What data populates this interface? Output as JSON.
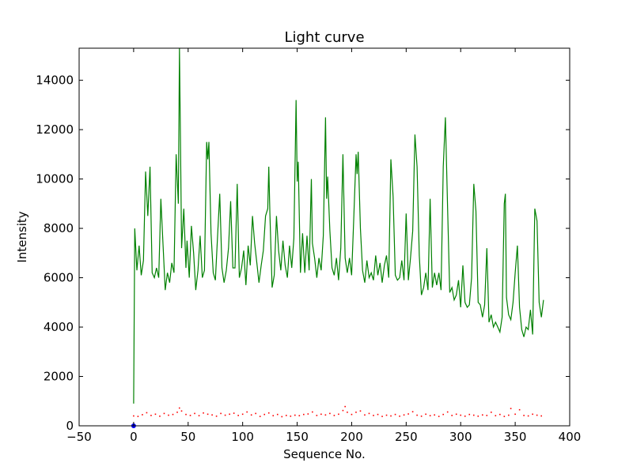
{
  "chart_data": {
    "type": "line",
    "title": "Light curve",
    "xlabel": "Sequence No.",
    "ylabel": "Intensity",
    "xlim": [
      -50,
      400
    ],
    "ylim": [
      0,
      15300
    ],
    "xticks": [
      -50,
      0,
      50,
      100,
      150,
      200,
      250,
      300,
      350,
      400
    ],
    "yticks": [
      0,
      2000,
      4000,
      6000,
      8000,
      10000,
      12000,
      14000
    ],
    "grid": false,
    "legend": "none",
    "series": [
      {
        "style": "solid-line",
        "color": "#008000",
        "points": [
          [
            0,
            900
          ],
          [
            1,
            8000
          ],
          [
            3,
            6300
          ],
          [
            5,
            7300
          ],
          [
            7,
            6100
          ],
          [
            9,
            6700
          ],
          [
            11,
            10300
          ],
          [
            13,
            8500
          ],
          [
            15,
            10500
          ],
          [
            17,
            6200
          ],
          [
            19,
            6000
          ],
          [
            21,
            6400
          ],
          [
            23,
            6000
          ],
          [
            25,
            9200
          ],
          [
            27,
            7300
          ],
          [
            29,
            5500
          ],
          [
            31,
            6200
          ],
          [
            33,
            5800
          ],
          [
            35,
            6600
          ],
          [
            37,
            6200
          ],
          [
            39,
            11000
          ],
          [
            41,
            9000
          ],
          [
            42,
            15300
          ],
          [
            43,
            11500
          ],
          [
            44,
            7200
          ],
          [
            46,
            8800
          ],
          [
            48,
            6400
          ],
          [
            49,
            7500
          ],
          [
            51,
            6000
          ],
          [
            53,
            8100
          ],
          [
            55,
            7000
          ],
          [
            57,
            5500
          ],
          [
            59,
            6300
          ],
          [
            61,
            7700
          ],
          [
            63,
            6000
          ],
          [
            65,
            6300
          ],
          [
            67,
            11500
          ],
          [
            68,
            10800
          ],
          [
            69,
            11500
          ],
          [
            71,
            7800
          ],
          [
            73,
            6200
          ],
          [
            75,
            5900
          ],
          [
            77,
            7700
          ],
          [
            79,
            9400
          ],
          [
            81,
            6400
          ],
          [
            83,
            5800
          ],
          [
            85,
            6300
          ],
          [
            87,
            7200
          ],
          [
            89,
            9100
          ],
          [
            91,
            6400
          ],
          [
            93,
            6400
          ],
          [
            95,
            9800
          ],
          [
            97,
            6000
          ],
          [
            99,
            6400
          ],
          [
            101,
            7100
          ],
          [
            103,
            5700
          ],
          [
            105,
            7300
          ],
          [
            107,
            6500
          ],
          [
            109,
            8500
          ],
          [
            111,
            7400
          ],
          [
            113,
            6600
          ],
          [
            115,
            5800
          ],
          [
            117,
            6500
          ],
          [
            119,
            7100
          ],
          [
            121,
            8500
          ],
          [
            123,
            8800
          ],
          [
            124,
            10500
          ],
          [
            125,
            8600
          ],
          [
            127,
            5600
          ],
          [
            129,
            6100
          ],
          [
            131,
            8500
          ],
          [
            133,
            7100
          ],
          [
            135,
            6300
          ],
          [
            137,
            7500
          ],
          [
            139,
            6500
          ],
          [
            141,
            6000
          ],
          [
            143,
            7300
          ],
          [
            145,
            6400
          ],
          [
            147,
            7600
          ],
          [
            149,
            13200
          ],
          [
            150,
            9900
          ],
          [
            151,
            10700
          ],
          [
            153,
            6200
          ],
          [
            155,
            7800
          ],
          [
            157,
            6200
          ],
          [
            159,
            7700
          ],
          [
            161,
            6300
          ],
          [
            163,
            10000
          ],
          [
            164,
            7400
          ],
          [
            166,
            6800
          ],
          [
            168,
            6000
          ],
          [
            170,
            6800
          ],
          [
            172,
            6300
          ],
          [
            174,
            7700
          ],
          [
            176,
            12500
          ],
          [
            177,
            9200
          ],
          [
            178,
            10100
          ],
          [
            180,
            7900
          ],
          [
            182,
            6400
          ],
          [
            184,
            6100
          ],
          [
            186,
            6800
          ],
          [
            188,
            5900
          ],
          [
            190,
            7200
          ],
          [
            192,
            11000
          ],
          [
            194,
            6800
          ],
          [
            196,
            6200
          ],
          [
            198,
            6800
          ],
          [
            200,
            6100
          ],
          [
            202,
            8500
          ],
          [
            204,
            11000
          ],
          [
            205,
            10200
          ],
          [
            206,
            11100
          ],
          [
            208,
            8000
          ],
          [
            210,
            6300
          ],
          [
            212,
            5800
          ],
          [
            214,
            6700
          ],
          [
            216,
            6000
          ],
          [
            218,
            6200
          ],
          [
            220,
            5900
          ],
          [
            222,
            6900
          ],
          [
            224,
            6100
          ],
          [
            226,
            6600
          ],
          [
            228,
            5800
          ],
          [
            230,
            6500
          ],
          [
            232,
            6900
          ],
          [
            234,
            6000
          ],
          [
            236,
            10800
          ],
          [
            238,
            9300
          ],
          [
            240,
            6100
          ],
          [
            242,
            5900
          ],
          [
            244,
            6000
          ],
          [
            246,
            6700
          ],
          [
            248,
            5900
          ],
          [
            250,
            8600
          ],
          [
            252,
            5900
          ],
          [
            254,
            6800
          ],
          [
            256,
            7900
          ],
          [
            258,
            11800
          ],
          [
            260,
            10500
          ],
          [
            262,
            6900
          ],
          [
            264,
            5300
          ],
          [
            266,
            5600
          ],
          [
            268,
            6200
          ],
          [
            270,
            5500
          ],
          [
            272,
            9200
          ],
          [
            274,
            5600
          ],
          [
            276,
            6200
          ],
          [
            278,
            5700
          ],
          [
            280,
            6200
          ],
          [
            282,
            5500
          ],
          [
            284,
            10500
          ],
          [
            286,
            12500
          ],
          [
            288,
            8800
          ],
          [
            290,
            5400
          ],
          [
            292,
            5600
          ],
          [
            294,
            5100
          ],
          [
            296,
            5300
          ],
          [
            298,
            5900
          ],
          [
            300,
            4800
          ],
          [
            302,
            6500
          ],
          [
            304,
            5000
          ],
          [
            306,
            4800
          ],
          [
            308,
            4900
          ],
          [
            310,
            6000
          ],
          [
            312,
            9800
          ],
          [
            314,
            8700
          ],
          [
            316,
            5000
          ],
          [
            318,
            4900
          ],
          [
            320,
            4400
          ],
          [
            322,
            4900
          ],
          [
            324,
            7200
          ],
          [
            326,
            4200
          ],
          [
            328,
            4500
          ],
          [
            330,
            4000
          ],
          [
            332,
            4200
          ],
          [
            334,
            4000
          ],
          [
            336,
            3800
          ],
          [
            338,
            4400
          ],
          [
            340,
            9000
          ],
          [
            341,
            9400
          ],
          [
            342,
            5200
          ],
          [
            344,
            4500
          ],
          [
            346,
            4300
          ],
          [
            348,
            5000
          ],
          [
            350,
            6200
          ],
          [
            352,
            7300
          ],
          [
            354,
            4800
          ],
          [
            356,
            3900
          ],
          [
            358,
            3600
          ],
          [
            360,
            4000
          ],
          [
            362,
            3900
          ],
          [
            364,
            4700
          ],
          [
            366,
            3700
          ],
          [
            368,
            8800
          ],
          [
            370,
            8300
          ],
          [
            372,
            5000
          ],
          [
            374,
            4400
          ],
          [
            376,
            5100
          ]
        ]
      },
      {
        "style": "dotted-points",
        "color": "#ff0000",
        "points": [
          [
            0,
            400
          ],
          [
            4,
            380
          ],
          [
            8,
            450
          ],
          [
            12,
            530
          ],
          [
            16,
            420
          ],
          [
            20,
            470
          ],
          [
            24,
            390
          ],
          [
            28,
            500
          ],
          [
            32,
            430
          ],
          [
            36,
            460
          ],
          [
            40,
            550
          ],
          [
            42,
            720
          ],
          [
            44,
            600
          ],
          [
            48,
            460
          ],
          [
            52,
            420
          ],
          [
            56,
            500
          ],
          [
            60,
            410
          ],
          [
            64,
            520
          ],
          [
            68,
            470
          ],
          [
            72,
            440
          ],
          [
            76,
            390
          ],
          [
            80,
            500
          ],
          [
            84,
            430
          ],
          [
            88,
            470
          ],
          [
            92,
            510
          ],
          [
            96,
            420
          ],
          [
            100,
            470
          ],
          [
            104,
            560
          ],
          [
            108,
            440
          ],
          [
            112,
            500
          ],
          [
            116,
            380
          ],
          [
            120,
            460
          ],
          [
            124,
            520
          ],
          [
            128,
            410
          ],
          [
            132,
            460
          ],
          [
            136,
            370
          ],
          [
            140,
            420
          ],
          [
            144,
            390
          ],
          [
            148,
            430
          ],
          [
            152,
            410
          ],
          [
            156,
            460
          ],
          [
            160,
            480
          ],
          [
            164,
            560
          ],
          [
            168,
            420
          ],
          [
            172,
            470
          ],
          [
            176,
            440
          ],
          [
            180,
            500
          ],
          [
            184,
            420
          ],
          [
            188,
            470
          ],
          [
            192,
            620
          ],
          [
            194,
            780
          ],
          [
            196,
            550
          ],
          [
            200,
            460
          ],
          [
            204,
            550
          ],
          [
            208,
            600
          ],
          [
            212,
            440
          ],
          [
            216,
            500
          ],
          [
            220,
            420
          ],
          [
            224,
            460
          ],
          [
            228,
            380
          ],
          [
            232,
            430
          ],
          [
            236,
            400
          ],
          [
            240,
            460
          ],
          [
            244,
            390
          ],
          [
            248,
            440
          ],
          [
            252,
            480
          ],
          [
            256,
            570
          ],
          [
            260,
            430
          ],
          [
            264,
            390
          ],
          [
            268,
            470
          ],
          [
            272,
            410
          ],
          [
            276,
            440
          ],
          [
            280,
            380
          ],
          [
            284,
            460
          ],
          [
            288,
            560
          ],
          [
            292,
            420
          ],
          [
            296,
            470
          ],
          [
            300,
            430
          ],
          [
            304,
            390
          ],
          [
            308,
            460
          ],
          [
            312,
            430
          ],
          [
            316,
            390
          ],
          [
            320,
            440
          ],
          [
            324,
            420
          ],
          [
            328,
            550
          ],
          [
            332,
            410
          ],
          [
            336,
            460
          ],
          [
            340,
            380
          ],
          [
            344,
            430
          ],
          [
            346,
            700
          ],
          [
            350,
            470
          ],
          [
            354,
            650
          ],
          [
            358,
            420
          ],
          [
            362,
            400
          ],
          [
            366,
            470
          ],
          [
            370,
            430
          ],
          [
            374,
            400
          ]
        ]
      },
      {
        "style": "marker",
        "color": "#0000ff",
        "points": [
          [
            0,
            0
          ]
        ]
      }
    ]
  }
}
